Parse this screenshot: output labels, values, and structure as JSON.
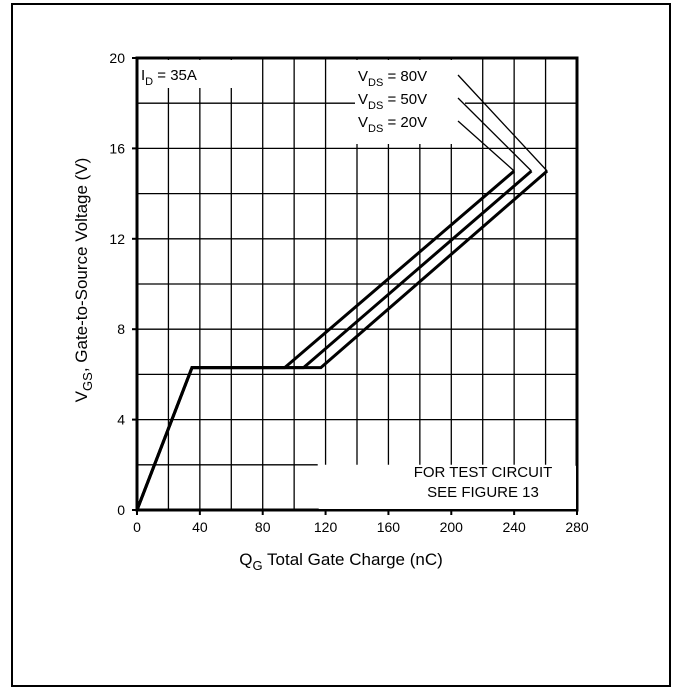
{
  "chart_data": {
    "type": "line",
    "title": "",
    "xlabel": {
      "main": "Q",
      "sub": "G",
      "rest": " Total Gate Charge (nC)"
    },
    "ylabel": {
      "main": "V",
      "sub": "GS",
      "rest": ", Gate-to-Source Voltage (V)"
    },
    "xlim": [
      0,
      280
    ],
    "ylim": [
      0,
      20
    ],
    "xticks": [
      0,
      40,
      80,
      120,
      160,
      200,
      240,
      280
    ],
    "yticks": [
      0,
      4,
      8,
      12,
      16,
      20
    ],
    "grid": true,
    "condition": {
      "main": "I",
      "sub": "D",
      "rest": " = 35A"
    },
    "note": [
      "FOR TEST CIRCUIT",
      "SEE FIGURE 13"
    ],
    "series": [
      {
        "name": {
          "main": "V",
          "sub": "DS",
          "rest": " = 80V"
        },
        "x": [
          0,
          35,
          117,
          261
        ],
        "y": [
          0,
          6.3,
          6.3,
          15
        ]
      },
      {
        "name": {
          "main": "V",
          "sub": "DS",
          "rest": " = 50V"
        },
        "x": [
          0,
          35,
          106,
          251
        ],
        "y": [
          0,
          6.3,
          6.3,
          15
        ]
      },
      {
        "name": {
          "main": "V",
          "sub": "DS",
          "rest": " = 20V"
        },
        "x": [
          0,
          35,
          94,
          240
        ],
        "y": [
          0,
          6.3,
          6.3,
          15
        ]
      }
    ]
  }
}
